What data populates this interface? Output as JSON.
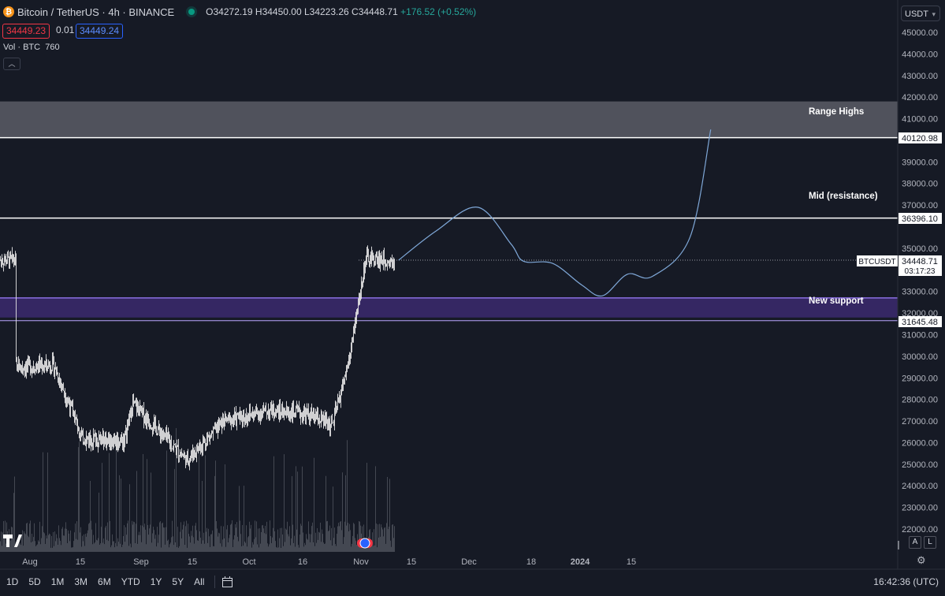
{
  "header": {
    "symbol_title": "Bitcoin / TetherUS · 4h · BINANCE",
    "logo_glyph": "₿",
    "open": "O34272.19",
    "high": "H34450.00",
    "low": "L34223.26",
    "close": "C34448.71",
    "change": "+176.52 (+0.52%)",
    "bid": "34449.23",
    "spread": "0.01",
    "ask": "34449.24"
  },
  "volume_label": {
    "name": "Vol · BTC",
    "value": "760"
  },
  "currency_selector": "USDT",
  "price_axis": {
    "ticks": [
      "45000.00",
      "44000.00",
      "43000.00",
      "42000.00",
      "41000.00",
      "39000.00",
      "38000.00",
      "37000.00",
      "35000.00",
      "33000.00",
      "32000.00",
      "31000.00",
      "30000.00",
      "29000.00",
      "28000.00",
      "27000.00",
      "26000.00",
      "25000.00",
      "24000.00",
      "23000.00",
      "22000.00"
    ],
    "tick_values": [
      45000,
      44000,
      43000,
      42000,
      41000,
      39000,
      38000,
      37000,
      35000,
      33000,
      32000,
      31000,
      30000,
      29000,
      28000,
      27000,
      26000,
      25000,
      24000,
      23000,
      22000
    ],
    "labels": {
      "range_high": "40120.98",
      "mid": "36396.10",
      "current_symbol": "BTCUSDT",
      "current_price": "34448.71",
      "countdown": "03:17:23",
      "support": "31645.48"
    }
  },
  "time_axis": [
    "Aug",
    "15",
    "Sep",
    "15",
    "Oct",
    "16",
    "Nov",
    "15",
    "Dec",
    "18",
    "2024",
    "15"
  ],
  "annotations": {
    "range_highs": "Range Highs",
    "mid_resistance": "Mid (resistance)",
    "new_support": "New support"
  },
  "zones": {
    "range_color": "#5a5d66",
    "support_color": "#3b2a6e",
    "line_color": "#ffffff",
    "projection_color": "#7fa8d8"
  },
  "candles_color": "#e6e6e6",
  "bottom_bar": {
    "timeframes": [
      "1D",
      "5D",
      "1M",
      "3M",
      "6M",
      "YTD",
      "1Y",
      "5Y",
      "All"
    ],
    "clock": "16:42:36 (UTC)",
    "auto": "A",
    "log": "L"
  },
  "icons": [
    "tradingview-logo-icon",
    "calendar-range-icon",
    "settings-gear-icon",
    "flag-icon"
  ],
  "chart_data": {
    "type": "candlestick",
    "symbol": "BTCUSDT",
    "interval": "4h",
    "ylim": [
      22000,
      45500
    ],
    "levels": [
      {
        "name": "Range Highs",
        "low": 40120.98,
        "high": 41800
      },
      {
        "name": "Mid (resistance)",
        "value": 36396.1
      },
      {
        "name": "New support",
        "low": 31645.48,
        "high": 32700
      }
    ],
    "price_path": [
      [
        "Aug 1",
        29500
      ],
      [
        "Aug 10",
        29600
      ],
      [
        "Aug 17",
        26200
      ],
      [
        "Aug 27",
        26100
      ],
      [
        "Aug 29",
        27800
      ],
      [
        "Sep 11",
        25200
      ],
      [
        "Sep 20",
        27000
      ],
      [
        "Oct 1",
        27500
      ],
      [
        "Oct 10",
        27300
      ],
      [
        "Oct 16",
        26800
      ],
      [
        "Oct 20",
        29800
      ],
      [
        "Oct 24",
        34500
      ],
      [
        "Oct 31",
        34448.71
      ]
    ],
    "projection": [
      [
        "Nov 1",
        34448.71
      ],
      [
        "Nov 10",
        35800
      ],
      [
        "Nov 20",
        36900
      ],
      [
        "Nov 28",
        35200
      ],
      [
        "Dec 1",
        34400
      ],
      [
        "Dec 8",
        34300
      ],
      [
        "Dec 15",
        33300
      ],
      [
        "Dec 20",
        32800
      ],
      [
        "Dec 26",
        33800
      ],
      [
        "Jan 1",
        33700
      ],
      [
        "Jan 10",
        35500
      ],
      [
        "Jan 15",
        40500
      ]
    ]
  }
}
